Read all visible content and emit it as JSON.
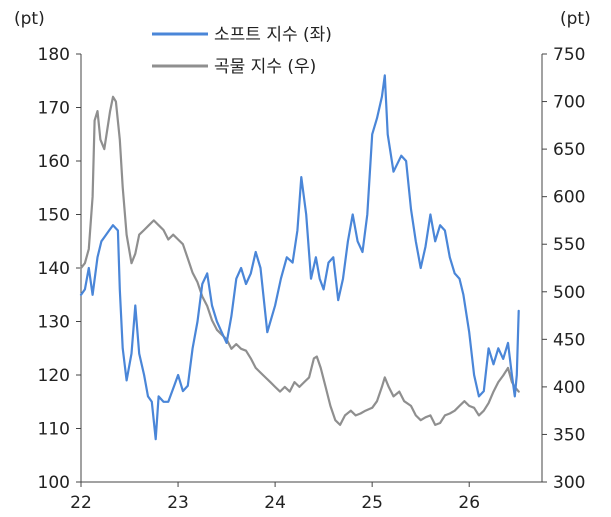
{
  "chart_data": {
    "type": "line",
    "title": "",
    "left_unit": "(pt)",
    "right_unit": "(pt)",
    "xlabel": "",
    "x_ticks": [
      "22",
      "23",
      "24",
      "25",
      "26"
    ],
    "x_range": [
      2022.0,
      2026.75
    ],
    "ylim_left": [
      100,
      180
    ],
    "yticks_left": [
      100,
      110,
      120,
      130,
      140,
      150,
      160,
      170,
      180
    ],
    "ylim_right": [
      300,
      750
    ],
    "yticks_right": [
      300,
      350,
      400,
      450,
      500,
      550,
      600,
      650,
      700,
      750
    ],
    "legend_position": "top-center",
    "series": [
      {
        "name": "소프트 지수 (좌)",
        "axis": "left",
        "color": "#4a86d8",
        "points": [
          [
            2022.0,
            135
          ],
          [
            2022.04,
            136
          ],
          [
            2022.08,
            140
          ],
          [
            2022.12,
            135
          ],
          [
            2022.17,
            142
          ],
          [
            2022.21,
            145
          ],
          [
            2022.25,
            146
          ],
          [
            2022.29,
            147
          ],
          [
            2022.33,
            148
          ],
          [
            2022.38,
            147
          ],
          [
            2022.4,
            136
          ],
          [
            2022.43,
            125
          ],
          [
            2022.47,
            119
          ],
          [
            2022.52,
            124
          ],
          [
            2022.56,
            133
          ],
          [
            2022.6,
            124
          ],
          [
            2022.65,
            120
          ],
          [
            2022.69,
            116
          ],
          [
            2022.73,
            115
          ],
          [
            2022.77,
            108
          ],
          [
            2022.8,
            116
          ],
          [
            2022.85,
            115
          ],
          [
            2022.9,
            115
          ],
          [
            2022.96,
            118
          ],
          [
            2023.0,
            120
          ],
          [
            2023.05,
            117
          ],
          [
            2023.1,
            118
          ],
          [
            2023.15,
            125
          ],
          [
            2023.2,
            130
          ],
          [
            2023.25,
            137
          ],
          [
            2023.3,
            139
          ],
          [
            2023.35,
            133
          ],
          [
            2023.4,
            130
          ],
          [
            2023.45,
            128
          ],
          [
            2023.5,
            126
          ],
          [
            2023.55,
            131
          ],
          [
            2023.6,
            138
          ],
          [
            2023.65,
            140
          ],
          [
            2023.7,
            137
          ],
          [
            2023.75,
            139
          ],
          [
            2023.8,
            143
          ],
          [
            2023.85,
            140
          ],
          [
            2023.92,
            128
          ],
          [
            2024.0,
            133
          ],
          [
            2024.06,
            138
          ],
          [
            2024.12,
            142
          ],
          [
            2024.18,
            141
          ],
          [
            2024.23,
            147
          ],
          [
            2024.27,
            157
          ],
          [
            2024.32,
            150
          ],
          [
            2024.37,
            138
          ],
          [
            2024.42,
            142
          ],
          [
            2024.46,
            138
          ],
          [
            2024.5,
            136
          ],
          [
            2024.55,
            141
          ],
          [
            2024.6,
            142
          ],
          [
            2024.65,
            134
          ],
          [
            2024.7,
            138
          ],
          [
            2024.75,
            145
          ],
          [
            2024.8,
            150
          ],
          [
            2024.85,
            145
          ],
          [
            2024.9,
            143
          ],
          [
            2024.95,
            150
          ],
          [
            2025.0,
            165
          ],
          [
            2025.05,
            168
          ],
          [
            2025.1,
            172
          ],
          [
            2025.13,
            176
          ],
          [
            2025.16,
            165
          ],
          [
            2025.22,
            158
          ],
          [
            2025.3,
            161
          ],
          [
            2025.35,
            160
          ],
          [
            2025.4,
            151
          ],
          [
            2025.45,
            145
          ],
          [
            2025.5,
            140
          ],
          [
            2025.55,
            144
          ],
          [
            2025.6,
            150
          ],
          [
            2025.65,
            145
          ],
          [
            2025.7,
            148
          ],
          [
            2025.75,
            147
          ],
          [
            2025.8,
            142
          ],
          [
            2025.85,
            139
          ],
          [
            2025.9,
            138
          ],
          [
            2025.94,
            135
          ],
          [
            2026.0,
            128
          ],
          [
            2026.05,
            120
          ],
          [
            2026.1,
            116
          ],
          [
            2026.15,
            117
          ],
          [
            2026.2,
            125
          ],
          [
            2026.25,
            122
          ],
          [
            2026.3,
            125
          ],
          [
            2026.35,
            123
          ],
          [
            2026.4,
            126
          ],
          [
            2026.44,
            120
          ],
          [
            2026.47,
            116
          ],
          [
            2026.49,
            120
          ],
          [
            2026.51,
            132
          ]
        ]
      },
      {
        "name": "곡물 지수 (우)",
        "axis": "right",
        "color": "#8f8f8f",
        "points": [
          [
            2022.0,
            525
          ],
          [
            2022.04,
            530
          ],
          [
            2022.08,
            545
          ],
          [
            2022.12,
            600
          ],
          [
            2022.14,
            680
          ],
          [
            2022.17,
            690
          ],
          [
            2022.2,
            660
          ],
          [
            2022.24,
            650
          ],
          [
            2022.27,
            670
          ],
          [
            2022.3,
            690
          ],
          [
            2022.33,
            705
          ],
          [
            2022.36,
            700
          ],
          [
            2022.4,
            660
          ],
          [
            2022.43,
            610
          ],
          [
            2022.47,
            560
          ],
          [
            2022.52,
            530
          ],
          [
            2022.56,
            540
          ],
          [
            2022.6,
            560
          ],
          [
            2022.65,
            565
          ],
          [
            2022.7,
            570
          ],
          [
            2022.75,
            575
          ],
          [
            2022.8,
            570
          ],
          [
            2022.85,
            565
          ],
          [
            2022.9,
            555
          ],
          [
            2022.95,
            560
          ],
          [
            2023.0,
            555
          ],
          [
            2023.05,
            550
          ],
          [
            2023.1,
            535
          ],
          [
            2023.15,
            520
          ],
          [
            2023.2,
            510
          ],
          [
            2023.25,
            495
          ],
          [
            2023.3,
            485
          ],
          [
            2023.35,
            470
          ],
          [
            2023.4,
            460
          ],
          [
            2023.45,
            455
          ],
          [
            2023.5,
            450
          ],
          [
            2023.55,
            440
          ],
          [
            2023.6,
            445
          ],
          [
            2023.65,
            440
          ],
          [
            2023.7,
            438
          ],
          [
            2023.75,
            430
          ],
          [
            2023.8,
            420
          ],
          [
            2023.85,
            415
          ],
          [
            2023.9,
            410
          ],
          [
            2023.95,
            405
          ],
          [
            2024.0,
            400
          ],
          [
            2024.05,
            395
          ],
          [
            2024.1,
            400
          ],
          [
            2024.15,
            395
          ],
          [
            2024.2,
            405
          ],
          [
            2024.25,
            400
          ],
          [
            2024.3,
            405
          ],
          [
            2024.35,
            410
          ],
          [
            2024.4,
            430
          ],
          [
            2024.43,
            432
          ],
          [
            2024.47,
            420
          ],
          [
            2024.52,
            400
          ],
          [
            2024.57,
            380
          ],
          [
            2024.62,
            365
          ],
          [
            2024.67,
            360
          ],
          [
            2024.72,
            370
          ],
          [
            2024.78,
            375
          ],
          [
            2024.83,
            370
          ],
          [
            2024.88,
            372
          ],
          [
            2024.93,
            375
          ],
          [
            2025.0,
            378
          ],
          [
            2025.05,
            385
          ],
          [
            2025.1,
            400
          ],
          [
            2025.13,
            410
          ],
          [
            2025.17,
            400
          ],
          [
            2025.22,
            390
          ],
          [
            2025.28,
            395
          ],
          [
            2025.33,
            385
          ],
          [
            2025.4,
            380
          ],
          [
            2025.45,
            370
          ],
          [
            2025.5,
            365
          ],
          [
            2025.55,
            368
          ],
          [
            2025.6,
            370
          ],
          [
            2025.65,
            360
          ],
          [
            2025.7,
            362
          ],
          [
            2025.75,
            370
          ],
          [
            2025.8,
            372
          ],
          [
            2025.85,
            375
          ],
          [
            2025.9,
            380
          ],
          [
            2025.95,
            385
          ],
          [
            2026.0,
            380
          ],
          [
            2026.05,
            378
          ],
          [
            2026.1,
            370
          ],
          [
            2026.15,
            375
          ],
          [
            2026.2,
            383
          ],
          [
            2026.25,
            395
          ],
          [
            2026.3,
            405
          ],
          [
            2026.35,
            412
          ],
          [
            2026.4,
            420
          ],
          [
            2026.44,
            405
          ],
          [
            2026.47,
            400
          ],
          [
            2026.51,
            395
          ]
        ]
      }
    ]
  }
}
